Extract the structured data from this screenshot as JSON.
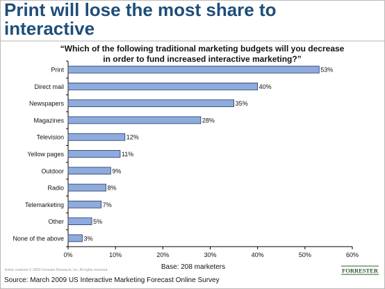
{
  "title_line1": "Print will lose the most share to",
  "title_line2": "interactive",
  "question_line1": "“Which of the following traditional marketing budgets will you decrease",
  "question_line2": "in order to fund increased interactive marketing?”",
  "base_note": "Base: 208 marketers",
  "copyright": "Entire contents © 2009  Forrester Research, Inc. All rights reserved.",
  "source": "Source: March 2009 US Interactive Marketing Forecast Online Survey",
  "logo_text": "FORRESTER",
  "colors": {
    "bar_fill": "#8faadc",
    "bar_stroke": "#1f3864",
    "title": "#1f4e79",
    "logo": "#2e5a2e"
  },
  "chart_data": {
    "type": "bar",
    "orientation": "horizontal",
    "categories": [
      "Print",
      "Direct mail",
      "Newspapers",
      "Magazines",
      "Television",
      "Yellow pages",
      "Outdoor",
      "Radio",
      "Telemarketing",
      "Other",
      "None of the above"
    ],
    "values": [
      53,
      40,
      35,
      28,
      12,
      11,
      9,
      8,
      7,
      5,
      3
    ],
    "value_labels": [
      "53%",
      "40%",
      "35%",
      "28%",
      "12%",
      "11%",
      "9%",
      "8%",
      "7%",
      "5%",
      "3%"
    ],
    "xlim": [
      0,
      60
    ],
    "xticks": [
      0,
      10,
      20,
      30,
      40,
      50,
      60
    ],
    "xtick_labels": [
      "0%",
      "10%",
      "20%",
      "30%",
      "40%",
      "50%",
      "60%"
    ],
    "grid": false,
    "legend": false
  }
}
